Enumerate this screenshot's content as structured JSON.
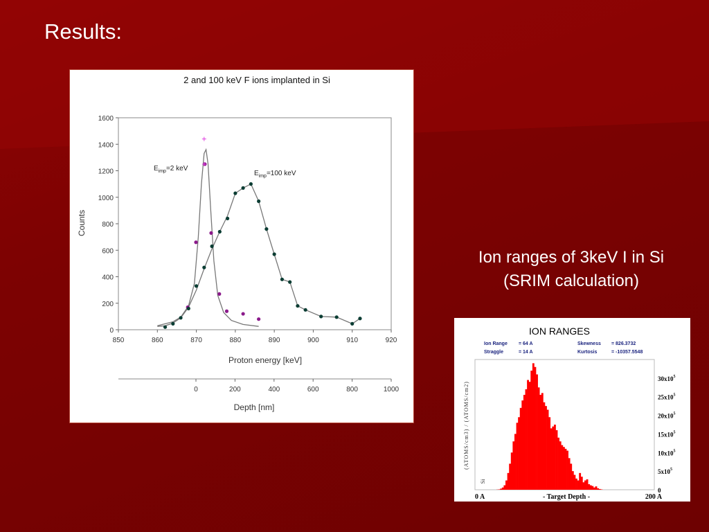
{
  "slide": {
    "title": "Results:",
    "caption_line1": "Ion ranges of 3keV I in Si",
    "caption_line2": "(SRIM calculation)"
  },
  "chart_data": [
    {
      "type": "scatter",
      "title": "2 and 100 keV F ions implanted in Si",
      "xlabel": "Proton energy [keV]",
      "ylabel": "Counts",
      "xlim": [
        850,
        920
      ],
      "ylim": [
        0,
        1600
      ],
      "x_ticks": [
        "850",
        "860",
        "870",
        "880",
        "890",
        "900",
        "910",
        "920"
      ],
      "y_ticks": [
        "0",
        "200",
        "400",
        "600",
        "800",
        "1000",
        "1200",
        "1400",
        "1600"
      ],
      "secondary_x_axis": {
        "label": "Depth [nm]",
        "ticks": [
          "0",
          "200",
          "400",
          "600",
          "800",
          "1000"
        ]
      },
      "series": [
        {
          "label_text": "E",
          "label_sub": "imp",
          "label_rest": "=2 keV",
          "color": "#8b1a8b",
          "marker": "circle",
          "x": [
            867.8,
            869.9,
            872.2,
            873.8,
            875.9,
            877.8,
            882.0,
            886.0
          ],
          "y": [
            170,
            660,
            1250,
            730,
            270,
            140,
            120,
            80
          ],
          "fit_x": [
            860,
            864,
            866,
            868,
            869.5,
            870.5,
            871.3,
            872.0,
            872.5,
            873.0,
            873.7,
            874.5,
            875.5,
            877,
            879,
            882,
            886
          ],
          "fit_y": [
            30,
            60,
            95,
            180,
            350,
            700,
            1100,
            1330,
            1360,
            1250,
            900,
            520,
            260,
            130,
            70,
            40,
            25
          ]
        },
        {
          "label_text": "E",
          "label_sub": "imp",
          "label_rest": "=100 keV",
          "color": "#0b3d33",
          "marker": "circle",
          "x": [
            862.0,
            864.0,
            866.0,
            868.0,
            870.0,
            872.0,
            874.0,
            876.0,
            878.0,
            880.0,
            882.0,
            884.0,
            886.0,
            888.0,
            890.0,
            892.0,
            894.0,
            896.0,
            898.0,
            902.0,
            906.0,
            910.0,
            912.0
          ],
          "y": [
            20,
            45,
            90,
            160,
            330,
            470,
            630,
            740,
            840,
            1030,
            1070,
            1100,
            970,
            760,
            570,
            380,
            360,
            180,
            150,
            100,
            95,
            45,
            85
          ],
          "fit_x": [
            860,
            862,
            864,
            866,
            868,
            870,
            872,
            874,
            876,
            878,
            880,
            882,
            884,
            886,
            888,
            890,
            892,
            894,
            896,
            898,
            902,
            906,
            910,
            912
          ],
          "fit_y": [
            25,
            30,
            50,
            90,
            170,
            300,
            460,
            610,
            740,
            860,
            1030,
            1070,
            1100,
            970,
            760,
            570,
            380,
            360,
            180,
            150,
            100,
            95,
            45,
            85
          ]
        }
      ],
      "crosses": {
        "color": "#e040e0",
        "x": [
          872.0,
          872.0
        ],
        "y": [
          1440,
          1250
        ]
      }
    },
    {
      "type": "bar",
      "title": "ION RANGES",
      "stats": [
        {
          "name": "Ion Range",
          "value": "=   64 A"
        },
        {
          "name": "Straggle",
          "value": "=   14 A"
        },
        {
          "name": "Skewness",
          "value": "= 826.3732"
        },
        {
          "name": "Kurtosis",
          "value": "= -10357.5548"
        }
      ],
      "xlabel": "- Target Depth -",
      "x_start_label": "0 A",
      "x_end_label": "200 A",
      "ylabel": "(ATOMS/cm3) / (ATOMS/cm2)",
      "layer_label": "Si",
      "xlim": [
        0,
        200
      ],
      "ylim": [
        0,
        3500000
      ],
      "y_ticks": [
        {
          "base": "0",
          "exp": ""
        },
        {
          "base": "5x10",
          "exp": "5"
        },
        {
          "base": "10x10",
          "exp": "5"
        },
        {
          "base": "15x10",
          "exp": "5"
        },
        {
          "base": "20x10",
          "exp": "5"
        },
        {
          "base": "25x10",
          "exp": "5"
        },
        {
          "base": "30x10",
          "exp": "5"
        }
      ],
      "color": "#ff0000",
      "bin_width": 2,
      "x": [
        24,
        26,
        28,
        30,
        32,
        34,
        36,
        38,
        40,
        42,
        44,
        46,
        48,
        50,
        52,
        54,
        56,
        58,
        60,
        62,
        64,
        66,
        68,
        70,
        72,
        74,
        76,
        78,
        80,
        82,
        84,
        86,
        88,
        90,
        92,
        94,
        96,
        98,
        100,
        102,
        104,
        106,
        108,
        110,
        112,
        114,
        116,
        118,
        120,
        122,
        124,
        126,
        128,
        130,
        132,
        134,
        136,
        138,
        140
      ],
      "values": [
        5000,
        10000,
        30000,
        60000,
        120000,
        250000,
        450000,
        700000,
        1000000,
        1300000,
        1500000,
        1800000,
        1950000,
        2200000,
        2400000,
        2550000,
        2700000,
        2950000,
        2900000,
        3200000,
        3400000,
        3300000,
        3100000,
        2750000,
        2550000,
        2600000,
        2350000,
        2250000,
        2150000,
        1950000,
        1650000,
        1700000,
        1750000,
        1600000,
        1400000,
        1300000,
        1200000,
        1150000,
        1100000,
        1050000,
        850000,
        700000,
        500000,
        400000,
        300000,
        250000,
        450000,
        350000,
        200000,
        250000,
        280000,
        150000,
        120000,
        100000,
        60000,
        90000,
        40000,
        20000,
        10000
      ]
    }
  ]
}
